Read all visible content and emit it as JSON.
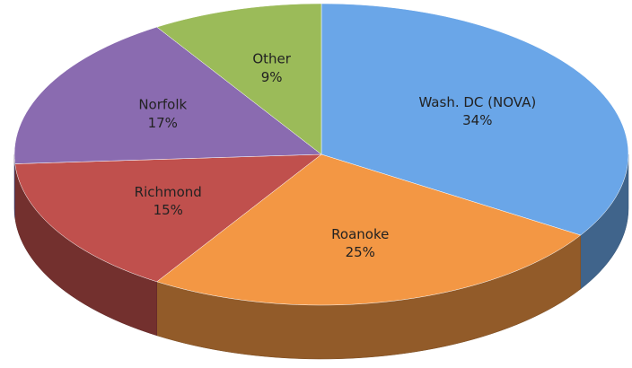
{
  "chart_data": {
    "type": "pie",
    "is_3d": true,
    "categories": [
      "Wash. DC (NOVA)",
      "Roanoke",
      "Richmond",
      "Norfolk",
      "Other"
    ],
    "values": [
      34,
      25,
      15,
      17,
      9
    ],
    "value_labels": [
      "34%",
      "25%",
      "15%",
      "17%",
      "9%"
    ],
    "colors": [
      "#6aa6e8",
      "#f39744",
      "#c0504d",
      "#8a6bb0",
      "#9bbb59"
    ]
  }
}
